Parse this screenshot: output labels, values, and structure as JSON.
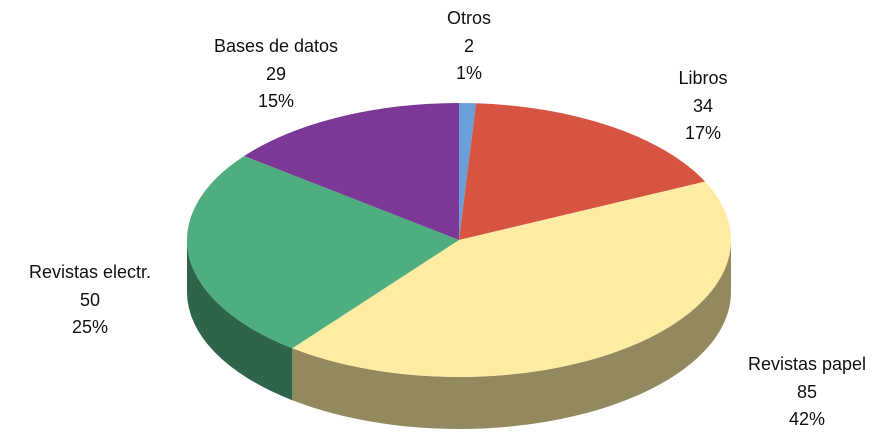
{
  "chart_data": {
    "type": "pie",
    "style": "3d",
    "categories": [
      "Otros",
      "Libros",
      "Revistas papel",
      "Revistas electr.",
      "Bases de datos"
    ],
    "values": [
      2,
      34,
      85,
      50,
      29
    ],
    "percent_labels": [
      "1%",
      "17%",
      "42%",
      "25%",
      "15%"
    ],
    "colors": [
      "#6b9fd9",
      "#d65441",
      "#fdeca2",
      "#4fae80",
      "#7b3897"
    ]
  }
}
